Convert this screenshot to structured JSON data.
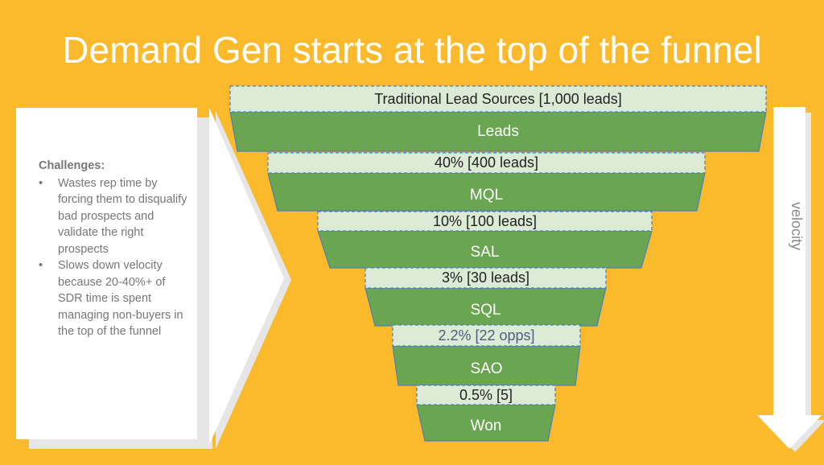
{
  "slide": {
    "title": "Demand Gen starts at the top of the funnel",
    "colors": {
      "background": "#FBBA2C",
      "band_fill": "#DCEBD5",
      "band_border": "#4A7FC1",
      "stage_fill": "#6AA551",
      "stage_border": "#4A7FC1",
      "panel": "#FFFFFF",
      "panel_shadow": "#E6E6E6"
    }
  },
  "challenges": {
    "heading": "Challenges:",
    "items": [
      "Wastes rep time by forcing them to disqualify bad prospects and validate the right prospects",
      "Slows down velocity because 20-40%+ of SDR time is spent managing non-buyers in the top of the funnel"
    ]
  },
  "funnel": {
    "stages": [
      {
        "lead_label": "Traditional Lead Sources [1,000 leads]",
        "stage_label": "Leads"
      },
      {
        "lead_label": "40% [400 leads]",
        "stage_label": "MQL"
      },
      {
        "lead_label": "10% [100 leads]",
        "stage_label": "SAL"
      },
      {
        "lead_label": "3% [30 leads]",
        "stage_label": "SQL"
      },
      {
        "lead_label": "2.2% [22 opps]",
        "stage_label": "SAO"
      },
      {
        "lead_label": "0.5% [5]",
        "stage_label": "Won"
      }
    ]
  },
  "velocity": {
    "label": "velocity",
    "arrow_icon": "down-arrow-icon"
  }
}
